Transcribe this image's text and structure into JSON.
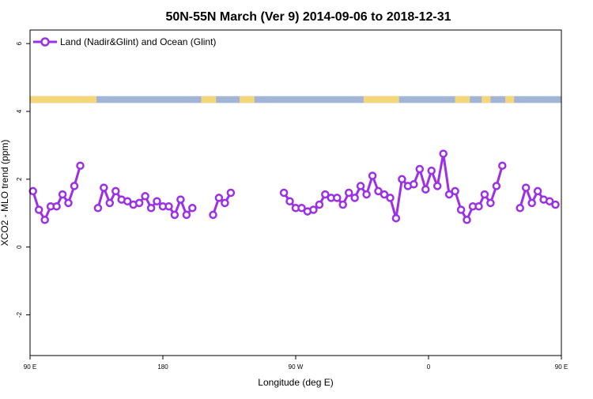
{
  "chart_data": {
    "type": "line",
    "title": "50N-55N March (Ver 9)   2014-09-06 to 2018-12-31",
    "xlabel": "Longitude (deg E)",
    "ylabel": "XCO2 - MLO trend (ppm)",
    "xlim": [
      90,
      450
    ],
    "ylim": [
      -3.2,
      6.4
    ],
    "x_ticks": [
      {
        "value": 90,
        "label": "90 E"
      },
      {
        "value": 180,
        "label": "180"
      },
      {
        "value": 270,
        "label": "90 W"
      },
      {
        "value": 360,
        "label": "0"
      },
      {
        "value": 450,
        "label": "90 E"
      },
      {
        "value": 540,
        "label": "180"
      }
    ],
    "y_ticks": [
      {
        "value": -2,
        "label": "-2"
      },
      {
        "value": 0,
        "label": "0"
      },
      {
        "value": 2,
        "label": "2"
      },
      {
        "value": 4,
        "label": "4"
      },
      {
        "value": 6,
        "label": "6"
      }
    ],
    "legend": {
      "position": "top-left",
      "label": "Land (Nadir&Glint) and Ocean (Glint)"
    },
    "colors": {
      "series": "#9b30e8",
      "land": "#f5d77a",
      "ocean": "#a3b5d6"
    },
    "land_ocean_band": {
      "y_range": [
        4.25,
        4.45
      ],
      "land": [
        [
          90,
          135
        ],
        [
          206,
          216
        ],
        [
          232,
          242
        ],
        [
          316,
          340
        ],
        [
          378,
          388
        ],
        [
          396,
          402
        ],
        [
          412,
          418
        ],
        [
          514,
          524
        ]
      ]
    },
    "series": [
      {
        "name": "Land (Nadir&Glint) and Ocean (Glint)",
        "segments": [
          [
            [
              92,
              1.65
            ],
            [
              96,
              1.1
            ],
            [
              100,
              0.8
            ],
            [
              104,
              1.2
            ],
            [
              108,
              1.2
            ],
            [
              112,
              1.55
            ],
            [
              116,
              1.3
            ],
            [
              120,
              1.8
            ],
            [
              124,
              2.4
            ]
          ],
          [
            [
              136,
              1.15
            ],
            [
              140,
              1.75
            ],
            [
              144,
              1.3
            ],
            [
              148,
              1.65
            ],
            [
              152,
              1.4
            ],
            [
              156,
              1.35
            ],
            [
              160,
              1.25
            ],
            [
              164,
              1.3
            ],
            [
              168,
              1.5
            ],
            [
              172,
              1.15
            ],
            [
              176,
              1.35
            ],
            [
              180,
              1.2
            ],
            [
              184,
              1.2
            ],
            [
              188,
              0.95
            ],
            [
              192,
              1.4
            ],
            [
              196,
              0.95
            ],
            [
              200,
              1.15
            ]
          ],
          [
            [
              214,
              0.95
            ],
            [
              218,
              1.45
            ],
            [
              222,
              1.3
            ],
            [
              226,
              1.6
            ]
          ],
          [
            [
              262,
              1.6
            ],
            [
              266,
              1.35
            ],
            [
              270,
              1.15
            ],
            [
              274,
              1.15
            ],
            [
              278,
              1.05
            ],
            [
              282,
              1.1
            ],
            [
              286,
              1.25
            ],
            [
              290,
              1.55
            ],
            [
              294,
              1.45
            ],
            [
              298,
              1.45
            ],
            [
              302,
              1.25
            ],
            [
              306,
              1.6
            ],
            [
              310,
              1.45
            ],
            [
              314,
              1.8
            ],
            [
              318,
              1.55
            ],
            [
              322,
              2.1
            ],
            [
              326,
              1.65
            ],
            [
              330,
              1.55
            ],
            [
              334,
              1.45
            ],
            [
              338,
              0.85
            ],
            [
              342,
              2.0
            ],
            [
              346,
              1.8
            ],
            [
              350,
              1.85
            ],
            [
              354,
              2.3
            ],
            [
              358,
              1.7
            ],
            [
              362,
              2.25
            ],
            [
              366,
              1.8
            ],
            [
              370,
              2.75
            ],
            [
              374,
              1.55
            ],
            [
              378,
              1.65
            ],
            [
              382,
              1.1
            ],
            [
              386,
              0.8
            ],
            [
              390,
              1.2
            ],
            [
              394,
              1.2
            ],
            [
              398,
              1.55
            ],
            [
              402,
              1.3
            ],
            [
              406,
              1.8
            ],
            [
              410,
              2.4
            ]
          ],
          [
            [
              422,
              1.15
            ],
            [
              426,
              1.75
            ],
            [
              430,
              1.3
            ],
            [
              434,
              1.65
            ],
            [
              438,
              1.4
            ],
            [
              442,
              1.35
            ],
            [
              446,
              1.25
            ]
          ]
        ]
      }
    ]
  }
}
